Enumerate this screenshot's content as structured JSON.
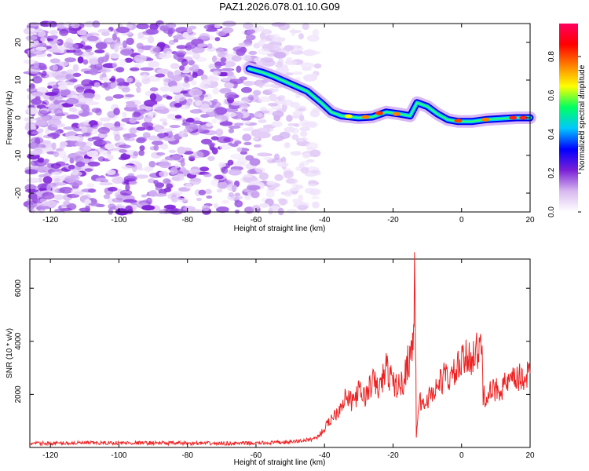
{
  "figure": {
    "title": "PAZ1.2026.078.01.10.G09"
  },
  "chart_data": [
    {
      "type": "heatmap",
      "xlabel": "Height of straight line (km)",
      "ylabel": "Frequency (Hz)",
      "xlim": [
        -126,
        20
      ],
      "ylim": [
        -25,
        25
      ],
      "xticks": [
        -120,
        -100,
        -80,
        -60,
        -40,
        -20,
        0,
        20
      ],
      "yticks": [
        -20,
        -10,
        0,
        10,
        20
      ],
      "colorbar": {
        "label": "Normalized spectral amplitude",
        "range": [
          0,
          0.97
        ],
        "ticks": [
          0.0,
          0.2,
          0.4,
          0.6,
          0.8
        ],
        "colormap": [
          "#ffffff",
          "#d8b8f0",
          "#7a1fd6",
          "#0000ff",
          "#00c8ff",
          "#00ff60",
          "#ffff00",
          "#ff8000",
          "#ff0000",
          "#ff0060"
        ]
      },
      "ridge": {
        "x": [
          -62,
          -58,
          -55,
          -50,
          -45,
          -41,
          -38,
          -35,
          -30,
          -26,
          -22,
          -18,
          -15,
          -13,
          -10,
          -7,
          -4,
          -1,
          3,
          7,
          12,
          16,
          20
        ],
        "y": [
          13,
          12,
          11,
          9,
          7,
          4,
          1.5,
          0.5,
          0,
          0.2,
          1.5,
          1,
          0.5,
          4,
          3,
          1,
          -0.5,
          -1,
          -1,
          -0.5,
          -0.2,
          0,
          0
        ]
      },
      "noise_region": [
        -126,
        -42
      ]
    },
    {
      "type": "line",
      "xlabel": "Height of straight line (km)",
      "ylabel": "SNR (10 * v/v)",
      "xlim": [
        -126,
        20
      ],
      "ylim": [
        0,
        7100
      ],
      "xticks": [
        -120,
        -100,
        -80,
        -60,
        -40,
        -20,
        0,
        20
      ],
      "yticks": [
        2000,
        4000,
        6000
      ],
      "series": [
        {
          "color": "#ee2222",
          "x": [
            -126,
            -110,
            -90,
            -70,
            -60,
            -50,
            -44,
            -42,
            -40,
            -38,
            -36,
            -34,
            -32,
            -30,
            -28,
            -26,
            -24,
            -22,
            -20,
            -18,
            -17,
            -16,
            -15,
            -14,
            -13.6,
            -13.2,
            -12.5,
            -11,
            -9,
            -7,
            -5,
            -3,
            -1,
            1,
            3,
            5,
            6,
            6.3,
            7,
            9,
            12,
            15,
            18,
            20
          ],
          "y": [
            150,
            170,
            170,
            150,
            160,
            200,
            300,
            400,
            700,
            1100,
            1400,
            1900,
            1700,
            2100,
            1900,
            2500,
            2200,
            3000,
            2400,
            2300,
            2500,
            3100,
            3500,
            4200,
            7000,
            300,
            1800,
            1600,
            2000,
            2300,
            2700,
            2600,
            3000,
            3300,
            3500,
            3600,
            3700,
            1900,
            1950,
            2100,
            2300,
            2500,
            2650,
            2800
          ]
        }
      ]
    }
  ]
}
